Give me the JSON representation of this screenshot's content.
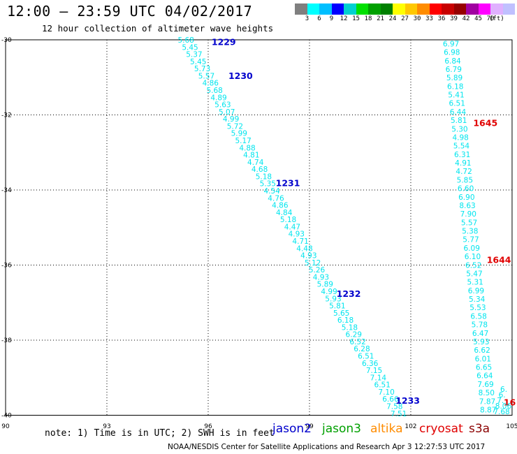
{
  "title": "12:00 – 23:59 UTC 04/02/2017",
  "subtitle": "12 hour collection of altimeter wave heights",
  "colorbar": {
    "colors": [
      "#7f7f7f",
      "#00ffff",
      "#00bfff",
      "#0000ff",
      "#00d0d0",
      "#00e000",
      "#00a000",
      "#008000",
      "#ffff00",
      "#ffc800",
      "#ff8c00",
      "#ff0000",
      "#c80000",
      "#960000",
      "#a000a0",
      "#ff00ff",
      "#e0b0ff",
      "#c0c0ff"
    ],
    "labels": [
      "3",
      "6",
      "9",
      "12",
      "15",
      "18",
      "21",
      "24",
      "27",
      "30",
      "33",
      "36",
      "39",
      "42",
      "45",
      "70"
    ],
    "unit": "(ft)"
  },
  "axes": {
    "lat_labels": [
      "-30",
      "-32",
      "-34",
      "-36",
      "-38",
      "-40"
    ],
    "lon_labels": [
      "90",
      "93",
      "96",
      "99",
      "102",
      "105"
    ]
  },
  "tracks": [
    {
      "satellite": "jason2",
      "color": "#00e5ee",
      "values": [
        "5.68",
        "5.45",
        "5.37",
        "5.45",
        "5.73",
        "5.57",
        "4.86",
        "5.68",
        "4.89",
        "5.63",
        "5.07",
        "4.99",
        "5.72",
        "5.99",
        "5.17",
        "4.88",
        "4.81",
        "4.74",
        "4.68",
        "5.18",
        "5.35",
        "4.54",
        "4.76",
        "4.86",
        "4.84",
        "5.18",
        "4.47",
        "4.93",
        "4.71",
        "4.48",
        "4.93",
        "5.12",
        "5.26",
        "4.93",
        "5.89",
        "4.99",
        "5.93",
        "5.81",
        "5.65",
        "6.18",
        "5.18",
        "6.29",
        "6.52",
        "6.28",
        "6.51",
        "6.36",
        "7.15",
        "7.14",
        "6.51",
        "7.10",
        "6.66",
        "7.58",
        "7.51"
      ],
      "time_labels": [
        {
          "text": "1229",
          "lat": -30.05,
          "lon": 96.1
        },
        {
          "text": "1230",
          "lat": -30.95,
          "lon": 96.6
        },
        {
          "text": "1231",
          "lat": -33.8,
          "lon": 98.0
        },
        {
          "text": "1232",
          "lat": -36.75,
          "lon": 99.8
        },
        {
          "text": "1233",
          "lat": -39.6,
          "lon": 101.55
        }
      ]
    },
    {
      "satellite": "cryosat",
      "color": "#00e5ee",
      "values": [
        "6.97",
        "6.98",
        "6.84",
        "6.79",
        "5.89",
        "6.18",
        "5.41",
        "6.51",
        "6.44",
        "5.81",
        "5.30",
        "4.98",
        "5.54",
        "6.31",
        "4.91",
        "4.72",
        "5.85",
        "6.60",
        "6.90",
        "8.63",
        "7.90",
        "5.57",
        "5.38",
        "5.77",
        "6.09",
        "6.10",
        "6.52",
        "5.47",
        "5.31",
        "6.99",
        "5.34",
        "5.53",
        "6.58",
        "5.78",
        "6.47",
        "5.93",
        "6.62",
        "6.01",
        "6.65",
        "6.64",
        "7.69",
        "8.50",
        "7.87",
        "8.87"
      ],
      "time_labels": [
        {
          "text": "1645",
          "lat": -32.2,
          "lon": 103.85
        },
        {
          "text": "1644",
          "lat": -35.85,
          "lon": 104.25
        },
        {
          "text": "16",
          "lat": -39.65,
          "lon": 104.75
        }
      ]
    },
    {
      "satellite": "s3a",
      "color": "#00e5ee",
      "values": [
        "6.",
        "6.",
        "7.",
        "8.06",
        "7.68"
      ],
      "time_labels": []
    }
  ],
  "note": "note: 1) Time is in UTC; 2) SWH is in feet",
  "legend": [
    {
      "label": "jason2",
      "color": "#0000cc"
    },
    {
      "label": "jason3",
      "color": "#00a000"
    },
    {
      "label": "altika",
      "color": "#ff8c00"
    },
    {
      "label": "cryosat",
      "color": "#e00000"
    },
    {
      "label": "s3a",
      "color": "#8b0000"
    }
  ],
  "credit": "NOAA/NESDIS Center for Satellite Applications and Research   Apr  3 12:27:53 UTC 2017"
}
